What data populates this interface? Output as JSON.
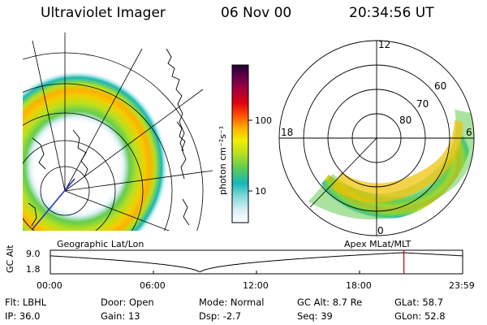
{
  "header": {
    "title": "Ultraviolet Imager",
    "date": "06 Nov 00",
    "time": "20:34:56 UT"
  },
  "colorbar": {
    "label": "photon cm⁻²s⁻¹",
    "ticks": [
      "100",
      "10"
    ],
    "scale": "log",
    "colors": [
      "#ffffff",
      "#d8eef6",
      "#7fd8d8",
      "#16b8b8",
      "#64cc50",
      "#b8e020",
      "#f0f000",
      "#ffb000",
      "#ff5000",
      "#e00010",
      "#a00040",
      "#60004a",
      "#200030"
    ]
  },
  "geo_panel": {
    "label": "Geographic Lat/Lon"
  },
  "mag_panel": {
    "label": "Apex MLat/MLT",
    "lat_labels": [
      "80",
      "70",
      "60"
    ],
    "mlt_labels": [
      "12",
      "18",
      "6",
      "0"
    ]
  },
  "timeline": {
    "ylabel": "GC Alt",
    "y_ticks": [
      "9.0",
      "1.8"
    ],
    "y_range": [
      1.8,
      9.0
    ],
    "x_ticks": [
      "00:00",
      "06:00",
      "12:00",
      "18:00",
      "23:59"
    ],
    "marker_time_hours": 20.58,
    "marker_color": "#cc0000"
  },
  "status": {
    "row1": [
      {
        "label": "Flt:",
        "value": "LBHL"
      },
      {
        "label": "Door:",
        "value": "Open"
      },
      {
        "label": "Mode:",
        "value": "Normal"
      },
      {
        "label": "GC Alt:",
        "value": "8.7 Re"
      },
      {
        "label": "GLat:",
        "value": "58.7"
      }
    ],
    "row2": [
      {
        "label": "IP:",
        "value": "36.0"
      },
      {
        "label": "Gain:",
        "value": "13"
      },
      {
        "label": "Dsp:",
        "value": "-2.7"
      },
      {
        "label": "Seq:",
        "value": "39"
      },
      {
        "label": "GLon:",
        "value": "52.8"
      }
    ]
  }
}
